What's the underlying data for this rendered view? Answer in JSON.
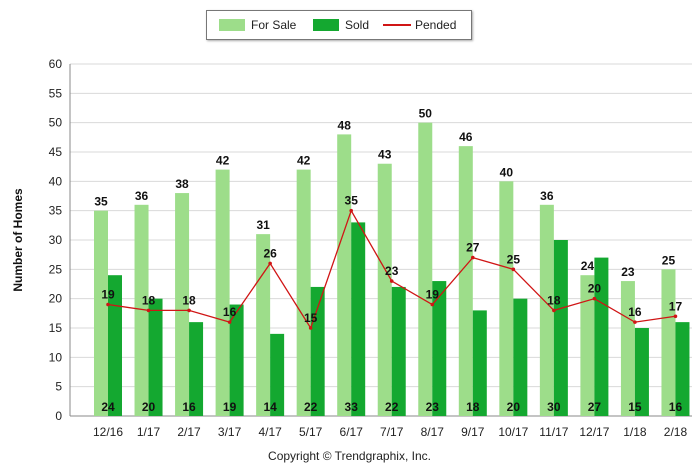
{
  "chart_data": {
    "type": "bar",
    "categories": [
      "12/16",
      "1/17",
      "2/17",
      "3/17",
      "4/17",
      "5/17",
      "6/17",
      "7/17",
      "8/17",
      "9/17",
      "10/17",
      "11/17",
      "12/17",
      "1/18",
      "2/18"
    ],
    "series": [
      {
        "name": "For Sale",
        "type": "bar",
        "color": "#9ddd8a",
        "values": [
          35,
          36,
          38,
          42,
          31,
          42,
          48,
          43,
          50,
          46,
          40,
          36,
          24,
          23,
          25
        ]
      },
      {
        "name": "Sold",
        "type": "bar",
        "color": "#14a830",
        "values": [
          24,
          20,
          16,
          19,
          14,
          22,
          33,
          22,
          23,
          18,
          20,
          30,
          27,
          15,
          16
        ]
      },
      {
        "name": "Pended",
        "type": "line",
        "color": "#d01515",
        "values": [
          19,
          18,
          18,
          16,
          26,
          15,
          35,
          23,
          19,
          27,
          25,
          18,
          20,
          16,
          17
        ]
      }
    ],
    "title": "",
    "xlabel": "",
    "ylabel": "Number of Homes",
    "ylim": [
      0,
      60
    ],
    "yticks": [
      0,
      5,
      10,
      15,
      20,
      25,
      30,
      35,
      40,
      45,
      50,
      55,
      60
    ],
    "grid": true,
    "legend_position": "top-center",
    "footer": "Copyright © Trendgraphix, Inc."
  }
}
